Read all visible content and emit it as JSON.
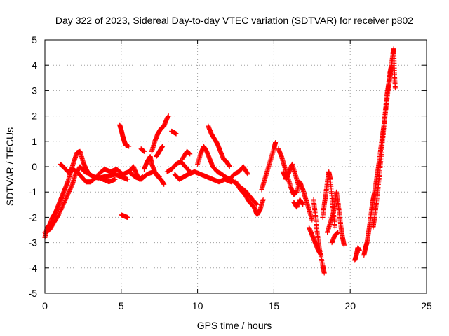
{
  "chart_data": {
    "type": "scatter",
    "title": "Day 322 of 2023, Sidereal Day-to-day VTEC variation (SDTVAR) for receiver p802",
    "xlabel": "GPS time / hours",
    "ylabel": "SDTVAR / TECUs",
    "xlim": [
      0,
      25
    ],
    "ylim": [
      -5,
      5
    ],
    "xticks": [
      "0",
      "5",
      "10",
      "15",
      "20",
      "25"
    ],
    "yticks": [
      "-5",
      "-4",
      "-3",
      "-2",
      "-1",
      "0",
      "1",
      "2",
      "3",
      "4",
      "5"
    ],
    "grid": true,
    "marker": "+",
    "color": "#ff0000",
    "series": [
      {
        "name": "SDTVAR",
        "tracks": [
          [
            [
              0.0,
              -2.8
            ],
            [
              0.15,
              -2.4
            ],
            [
              0.3,
              -2.3
            ],
            [
              0.5,
              -2.0
            ],
            [
              0.7,
              -1.8
            ],
            [
              0.9,
              -1.5
            ],
            [
              1.1,
              -1.2
            ],
            [
              1.3,
              -0.9
            ],
            [
              1.5,
              -0.6
            ],
            [
              1.7,
              -0.2
            ],
            [
              1.9,
              0.2
            ],
            [
              2.1,
              0.55
            ],
            [
              2.3,
              0.6
            ],
            [
              2.5,
              0.2
            ],
            [
              2.7,
              -0.1
            ],
            [
              2.9,
              -0.3
            ],
            [
              3.2,
              -0.4
            ],
            [
              3.5,
              -0.45
            ],
            [
              3.9,
              -0.4
            ],
            [
              4.3,
              -0.35
            ],
            [
              4.6,
              -0.3
            ],
            [
              5.0,
              -0.4
            ],
            [
              5.4,
              -0.5
            ]
          ],
          [
            [
              0.0,
              -2.6
            ],
            [
              0.3,
              -2.5
            ],
            [
              0.6,
              -2.2
            ],
            [
              0.9,
              -1.9
            ],
            [
              1.2,
              -1.5
            ],
            [
              1.5,
              -1.1
            ],
            [
              1.8,
              -0.7
            ],
            [
              2.0,
              -0.3
            ],
            [
              2.3,
              0.0
            ],
            [
              2.6,
              -0.2
            ],
            [
              3.0,
              -0.3
            ]
          ],
          [
            [
              1.0,
              0.1
            ],
            [
              1.2,
              0.0
            ],
            [
              1.5,
              -0.2
            ],
            [
              1.8,
              -0.1
            ],
            [
              2.1,
              -0.2
            ],
            [
              2.4,
              -0.4
            ],
            [
              2.7,
              -0.6
            ],
            [
              3.0,
              -0.6
            ],
            [
              3.4,
              -0.4
            ],
            [
              3.8,
              -0.5
            ],
            [
              4.2,
              -0.6
            ],
            [
              4.6,
              -0.5
            ]
          ],
          [
            [
              3.5,
              -0.3
            ],
            [
              3.9,
              -0.1
            ],
            [
              4.3,
              -0.2
            ],
            [
              4.7,
              -0.1
            ],
            [
              5.1,
              -0.3
            ],
            [
              5.5,
              -0.2
            ],
            [
              5.9,
              -0.4
            ],
            [
              6.3,
              -0.5
            ],
            [
              6.7,
              -0.3
            ],
            [
              7.1,
              -0.2
            ],
            [
              7.5,
              -0.4
            ]
          ],
          [
            [
              4.9,
              1.65
            ],
            [
              5.0,
              1.45
            ],
            [
              5.1,
              1.2
            ],
            [
              5.2,
              1.0
            ],
            [
              5.3,
              0.85
            ],
            [
              5.5,
              0.8
            ]
          ],
          [
            [
              5.0,
              -1.9
            ],
            [
              5.2,
              -1.95
            ],
            [
              5.4,
              -2.0
            ]
          ],
          [
            [
              5.5,
              -0.2
            ],
            [
              5.8,
              0.0
            ],
            [
              6.0,
              -0.3
            ],
            [
              6.2,
              -0.5
            ],
            [
              6.4,
              -0.4
            ]
          ],
          [
            [
              6.3,
              0.7
            ],
            [
              6.5,
              0.6
            ]
          ],
          [
            [
              6.5,
              -0.1
            ],
            [
              6.7,
              0.2
            ],
            [
              6.9,
              0.4
            ],
            [
              7.0,
              0.1
            ],
            [
              7.2,
              -0.2
            ],
            [
              7.4,
              -0.4
            ],
            [
              7.6,
              -0.5
            ],
            [
              7.8,
              -0.7
            ]
          ],
          [
            [
              7.0,
              0.6
            ],
            [
              7.2,
              1.0
            ],
            [
              7.4,
              1.3
            ],
            [
              7.6,
              1.5
            ],
            [
              7.8,
              1.6
            ],
            [
              8.0,
              1.9
            ],
            [
              8.1,
              2.0
            ]
          ],
          [
            [
              7.3,
              0.4
            ],
            [
              7.5,
              0.6
            ],
            [
              7.7,
              0.8
            ]
          ],
          [
            [
              8.0,
              -0.2
            ],
            [
              8.3,
              -0.1
            ],
            [
              8.6,
              0.1
            ],
            [
              8.9,
              0.2
            ],
            [
              9.2,
              0.0
            ],
            [
              9.5,
              -0.2
            ]
          ],
          [
            [
              8.3,
              1.4
            ],
            [
              8.6,
              1.3
            ]
          ],
          [
            [
              8.5,
              -0.3
            ],
            [
              8.8,
              -0.5
            ],
            [
              9.1,
              -0.4
            ],
            [
              9.4,
              -0.3
            ],
            [
              9.8,
              -0.2
            ],
            [
              10.2,
              -0.3
            ],
            [
              10.6,
              -0.4
            ],
            [
              11.0,
              -0.5
            ],
            [
              11.4,
              -0.6
            ],
            [
              11.8,
              -0.5
            ],
            [
              12.2,
              -0.6
            ]
          ],
          [
            [
              9.0,
              0.3
            ],
            [
              9.3,
              0.6
            ],
            [
              9.5,
              0.5
            ]
          ],
          [
            [
              10.0,
              0.1
            ],
            [
              10.2,
              0.5
            ],
            [
              10.4,
              0.8
            ],
            [
              10.6,
              0.6
            ],
            [
              10.8,
              0.3
            ],
            [
              11.0,
              0.0
            ],
            [
              11.3,
              -0.2
            ],
            [
              11.6,
              -0.3
            ],
            [
              12.0,
              -0.5
            ],
            [
              12.4,
              -0.6
            ],
            [
              12.8,
              -0.8
            ],
            [
              13.2,
              -1.0
            ],
            [
              13.6,
              -1.3
            ],
            [
              13.9,
              -1.5
            ]
          ],
          [
            [
              10.7,
              1.6
            ],
            [
              10.9,
              1.3
            ],
            [
              11.1,
              1.1
            ],
            [
              11.3,
              0.9
            ],
            [
              11.5,
              0.6
            ],
            [
              11.7,
              0.3
            ],
            [
              11.9,
              0.2
            ],
            [
              12.1,
              0.0
            ]
          ],
          [
            [
              11.8,
              -0.4
            ],
            [
              12.1,
              -0.5
            ],
            [
              12.4,
              -0.3
            ],
            [
              12.7,
              -0.2
            ],
            [
              13.0,
              0.0
            ],
            [
              13.3,
              -0.3
            ]
          ],
          [
            [
              12.5,
              -0.6
            ],
            [
              12.8,
              -0.9
            ],
            [
              13.1,
              -1.1
            ],
            [
              13.4,
              -1.4
            ],
            [
              13.7,
              -1.6
            ],
            [
              13.9,
              -1.9
            ],
            [
              14.1,
              -1.7
            ],
            [
              14.3,
              -1.3
            ]
          ],
          [
            [
              14.2,
              -0.9
            ],
            [
              14.4,
              -0.5
            ],
            [
              14.6,
              -0.1
            ],
            [
              14.8,
              0.3
            ],
            [
              15.0,
              0.7
            ],
            [
              15.1,
              0.95
            ]
          ],
          [
            [
              15.3,
              0.7
            ],
            [
              15.5,
              0.4
            ],
            [
              15.7,
              0.0
            ],
            [
              15.9,
              -0.4
            ],
            [
              16.1,
              -0.8
            ],
            [
              16.3,
              -1.1
            ],
            [
              16.5,
              -1.0
            ],
            [
              16.7,
              -0.6
            ],
            [
              16.9,
              -0.9
            ],
            [
              17.1,
              -1.3
            ],
            [
              17.3,
              -1.7
            ],
            [
              17.5,
              -2.1
            ]
          ],
          [
            [
              15.6,
              -0.2
            ],
            [
              15.8,
              -0.5
            ],
            [
              16.0,
              -0.2
            ],
            [
              16.2,
              0.1
            ],
            [
              16.4,
              -0.3
            ],
            [
              16.6,
              -0.7
            ]
          ],
          [
            [
              16.3,
              -1.4
            ],
            [
              16.5,
              -1.6
            ],
            [
              16.7,
              -1.3
            ],
            [
              16.9,
              -1.5
            ]
          ],
          [
            [
              17.3,
              -2.4
            ],
            [
              17.5,
              -2.7
            ],
            [
              17.7,
              -3.0
            ],
            [
              17.9,
              -3.3
            ],
            [
              18.1,
              -3.5
            ]
          ],
          [
            [
              17.6,
              -1.3
            ],
            [
              17.7,
              -1.8
            ],
            [
              17.8,
              -2.4
            ],
            [
              17.9,
              -2.9
            ],
            [
              18.0,
              -3.3
            ],
            [
              18.2,
              -3.9
            ],
            [
              18.3,
              -4.2
            ]
          ],
          [
            [
              18.2,
              -2.0
            ],
            [
              18.3,
              -1.5
            ],
            [
              18.4,
              -1.1
            ],
            [
              18.5,
              -0.6
            ],
            [
              18.6,
              -0.2
            ],
            [
              18.7,
              -0.5
            ],
            [
              18.8,
              -1.2
            ],
            [
              18.9,
              -1.8
            ],
            [
              19.0,
              -2.4
            ]
          ],
          [
            [
              18.5,
              -2.6
            ],
            [
              18.7,
              -2.2
            ],
            [
              18.9,
              -1.8
            ],
            [
              19.0,
              -1.4
            ],
            [
              19.1,
              -1.0
            ],
            [
              19.2,
              -1.4
            ],
            [
              19.3,
              -1.9
            ],
            [
              19.4,
              -2.4
            ],
            [
              19.5,
              -2.8
            ],
            [
              19.6,
              -3.1
            ]
          ],
          [
            [
              18.8,
              -3.0
            ],
            [
              19.0,
              -2.7
            ],
            [
              19.2,
              -2.6
            ]
          ],
          [
            [
              20.3,
              -3.7
            ],
            [
              20.4,
              -3.5
            ],
            [
              20.5,
              -3.2
            ],
            [
              20.6,
              -3.3
            ]
          ],
          [
            [
              20.9,
              -3.5
            ],
            [
              21.0,
              -3.2
            ],
            [
              21.1,
              -3.0
            ],
            [
              21.2,
              -2.6
            ],
            [
              21.3,
              -2.2
            ],
            [
              21.4,
              -1.7
            ],
            [
              21.5,
              -1.3
            ],
            [
              21.6,
              -1.0
            ],
            [
              21.7,
              -0.6
            ],
            [
              21.8,
              -0.2
            ],
            [
              21.9,
              0.2
            ],
            [
              22.0,
              0.7
            ],
            [
              22.1,
              1.2
            ],
            [
              22.2,
              1.6
            ],
            [
              22.3,
              2.1
            ],
            [
              22.4,
              2.6
            ],
            [
              22.5,
              3.1
            ],
            [
              22.6,
              3.5
            ],
            [
              22.7,
              3.9
            ]
          ],
          [
            [
              21.5,
              -2.4
            ],
            [
              21.6,
              -2.0
            ],
            [
              21.7,
              -1.5
            ],
            [
              21.8,
              -1.0
            ],
            [
              21.9,
              -0.4
            ],
            [
              22.0,
              0.2
            ],
            [
              22.1,
              0.9
            ],
            [
              22.2,
              1.5
            ],
            [
              22.3,
              2.2
            ],
            [
              22.4,
              2.8
            ],
            [
              22.5,
              3.2
            ],
            [
              22.6,
              3.7
            ],
            [
              22.7,
              4.0
            ],
            [
              22.8,
              4.45
            ],
            [
              22.85,
              4.65
            ],
            [
              22.9,
              3.7
            ],
            [
              22.95,
              3.1
            ]
          ]
        ]
      }
    ]
  }
}
